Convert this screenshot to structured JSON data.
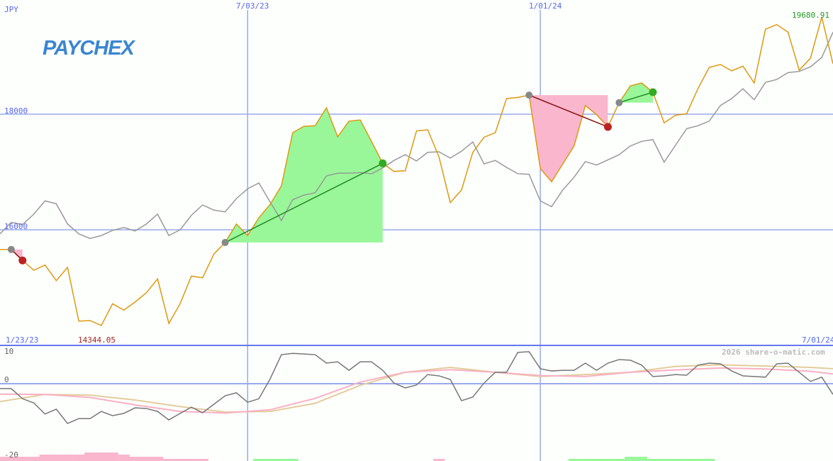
{
  "logo": "PAYCHEX",
  "currency": "JPY",
  "watermark": "2026 share-o-matic.com",
  "colors": {
    "price": "#dd9911",
    "benchmark": "#999999",
    "grid": "#99aaee",
    "axis": "#6677ee",
    "win": "#99f799",
    "loss": "#f9b6cc",
    "win_dot": "#33aa22",
    "loss_dot": "#bb2222",
    "osc": "#777777",
    "osc_fast": "#f9b0c4",
    "osc_slow": "#e4cc9c"
  },
  "chart_data": [
    {
      "type": "line",
      "title": "",
      "ylabel": "JPY",
      "ylim": [
        14050,
        20050
      ],
      "yticks": [
        {
          "value": 16000,
          "label": "16000"
        },
        {
          "value": 18000,
          "label": "18000"
        }
      ],
      "xticks": [
        {
          "index": 22,
          "label": "7/03/23"
        },
        {
          "index": 48,
          "label": "1/01/24"
        }
      ],
      "start_label": "1/23/23",
      "end_label": "7/01/24",
      "max_label": "19680.91",
      "min_label": "14344.05",
      "min_index": 9,
      "grid": true,
      "series": [
        {
          "key": "price",
          "values": [
            15660,
            15660,
            15470,
            15300,
            15390,
            15120,
            15350,
            14420,
            14430,
            14344,
            14720,
            14610,
            14750,
            14910,
            15150,
            14380,
            14720,
            15200,
            15170,
            15580,
            15780,
            16100,
            15900,
            16210,
            16440,
            16760,
            17680,
            17790,
            17800,
            18110,
            17610,
            17880,
            17900,
            17530,
            17150,
            17010,
            17020,
            17710,
            17730,
            17260,
            16470,
            16690,
            17340,
            17600,
            17680,
            18270,
            18290,
            18330,
            17060,
            16830,
            17140,
            17450,
            18150,
            17990,
            17780,
            18200,
            18490,
            18540,
            18380,
            17850,
            17980,
            18010,
            18440,
            18810,
            18860,
            18750,
            18830,
            18540,
            19470,
            19550,
            19420,
            18760,
            18970,
            19680,
            18870
          ]
        },
        {
          "key": "benchmark",
          "values": [
            15930,
            16130,
            16090,
            16270,
            16500,
            16450,
            16100,
            15930,
            15850,
            15900,
            15990,
            16040,
            15980,
            16100,
            16270,
            15900,
            16000,
            16250,
            16430,
            16340,
            16310,
            16540,
            16710,
            16810,
            16480,
            16160,
            16520,
            16600,
            16640,
            16930,
            16980,
            16980,
            16990,
            16970,
            17070,
            17200,
            17300,
            17190,
            17340,
            17350,
            17240,
            17360,
            17520,
            17140,
            17200,
            17080,
            16970,
            16960,
            16500,
            16400,
            16690,
            16910,
            17180,
            17120,
            17210,
            17300,
            17450,
            17530,
            17560,
            17170,
            17460,
            17750,
            17800,
            17880,
            18150,
            18270,
            18440,
            18250,
            18550,
            18600,
            18720,
            18740,
            18820,
            18980,
            19420
          ]
        }
      ],
      "trades": [
        {
          "entry": 1,
          "exit": 2,
          "result": "loss"
        },
        {
          "entry": 20,
          "exit": 34,
          "result": "win"
        },
        {
          "entry": 47,
          "exit": 54,
          "result": "loss"
        },
        {
          "entry": 55,
          "exit": 58,
          "result": "win"
        }
      ]
    },
    {
      "type": "line",
      "ylim": [
        -21,
        12
      ],
      "yticks": [
        {
          "value": 10,
          "label": "10"
        },
        {
          "value": 0,
          "label": "0"
        },
        {
          "value": -20,
          "label": "-20"
        }
      ],
      "series": [
        {
          "key": "osc",
          "values": [
            -1.5,
            -1.5,
            -4.6,
            -5.9,
            -9.3,
            -7.8,
            -12.2,
            -10.7,
            -10.7,
            -8.5,
            -9.8,
            -9.1,
            -7.4,
            -7.6,
            -8.5,
            -11.1,
            -9.1,
            -7.2,
            -8.9,
            -6.3,
            -3.7,
            -2.8,
            -5.7,
            -4.6,
            1.5,
            8.9,
            9.3,
            9.1,
            8.9,
            6.3,
            6.7,
            4.1,
            6.7,
            6.7,
            4.1,
            0.2,
            -1.3,
            -0.4,
            2.8,
            2.4,
            1.3,
            -5.2,
            -4.1,
            0.2,
            3.5,
            3.5,
            9.6,
            9.8,
            4.6,
            3.9,
            4.1,
            4.1,
            6.3,
            4.1,
            6.3,
            7.4,
            7.2,
            5.7,
            2.2,
            2.4,
            2.8,
            2.6,
            5.7,
            6.3,
            6.1,
            3.9,
            2.4,
            2.2,
            2.0,
            6.1,
            6.3,
            3.5,
            0.7,
            2.0,
            -3.3
          ]
        },
        {
          "key": "osc_fast",
          "x": [
            0,
            4,
            8,
            12,
            16,
            20,
            24,
            28,
            32,
            36,
            40,
            44,
            48,
            52,
            56,
            60,
            64,
            68,
            72,
            74
          ],
          "values": [
            -3.2,
            -3.3,
            -4.2,
            -6.5,
            -8.5,
            -9.0,
            -8.0,
            -4.5,
            0.5,
            3.5,
            4.3,
            3.5,
            2.5,
            2.2,
            3.5,
            4.2,
            4.8,
            4.5,
            3.8,
            3.0
          ]
        },
        {
          "key": "osc_slow",
          "x": [
            0,
            4,
            8,
            12,
            16,
            20,
            24,
            28,
            32,
            36,
            40,
            44,
            48,
            52,
            56,
            60,
            64,
            68,
            72,
            74
          ],
          "values": [
            -5.5,
            -3.3,
            -3.5,
            -5,
            -7,
            -8.7,
            -8.5,
            -6,
            -0.5,
            3.5,
            5,
            3.5,
            2.2,
            2.8,
            3.5,
            5.3,
            5.8,
            5.4,
            5.0,
            4.6
          ]
        }
      ],
      "histogram": [
        -2,
        -2,
        -2,
        -2,
        -3,
        -3,
        -3,
        -3,
        -4,
        -4,
        -4,
        -3,
        -2,
        -2,
        -2,
        -1,
        -1,
        -1,
        -1,
        0,
        0,
        0,
        0,
        1,
        1,
        1,
        1,
        0,
        0,
        0,
        0,
        0,
        0,
        0,
        0,
        0,
        0,
        0,
        0,
        -1,
        0,
        0,
        0,
        0,
        0,
        0,
        0,
        0,
        0,
        0,
        0,
        1,
        1,
        1,
        1,
        1,
        2,
        2,
        1,
        1,
        1,
        1,
        1,
        1,
        0,
        0,
        0,
        0,
        0,
        0,
        0,
        0,
        0,
        0,
        0
      ]
    }
  ]
}
